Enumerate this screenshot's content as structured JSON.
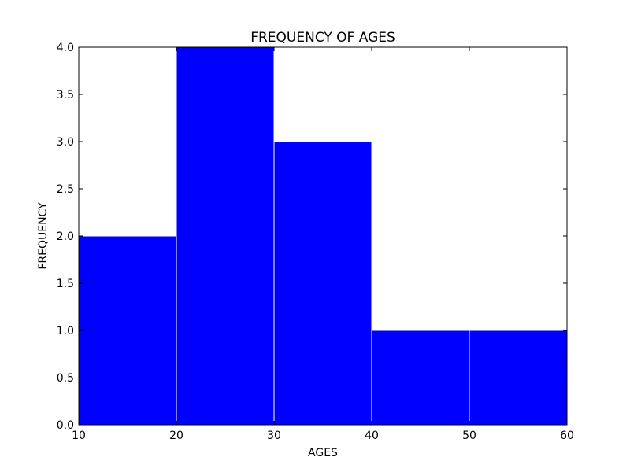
{
  "chart_data": {
    "type": "bar",
    "title": "FREQUENCY OF AGES",
    "xlabel": "AGES",
    "ylabel": "FREQUENCY",
    "bins": [
      {
        "start": 10,
        "end": 20,
        "value": 2
      },
      {
        "start": 20,
        "end": 30,
        "value": 4
      },
      {
        "start": 30,
        "end": 40,
        "value": 3
      },
      {
        "start": 40,
        "end": 50,
        "value": 1
      },
      {
        "start": 50,
        "end": 60,
        "value": 1
      }
    ],
    "xlim": [
      10,
      60
    ],
    "ylim": [
      0,
      4
    ],
    "xticks": [
      "10",
      "20",
      "30",
      "40",
      "50",
      "60"
    ],
    "yticks": [
      "0.0",
      "0.5",
      "1.0",
      "1.5",
      "2.0",
      "2.5",
      "3.0",
      "3.5",
      "4.0"
    ],
    "bar_color": "#0000ff",
    "edge_color": "#ffffff",
    "grid": false
  }
}
